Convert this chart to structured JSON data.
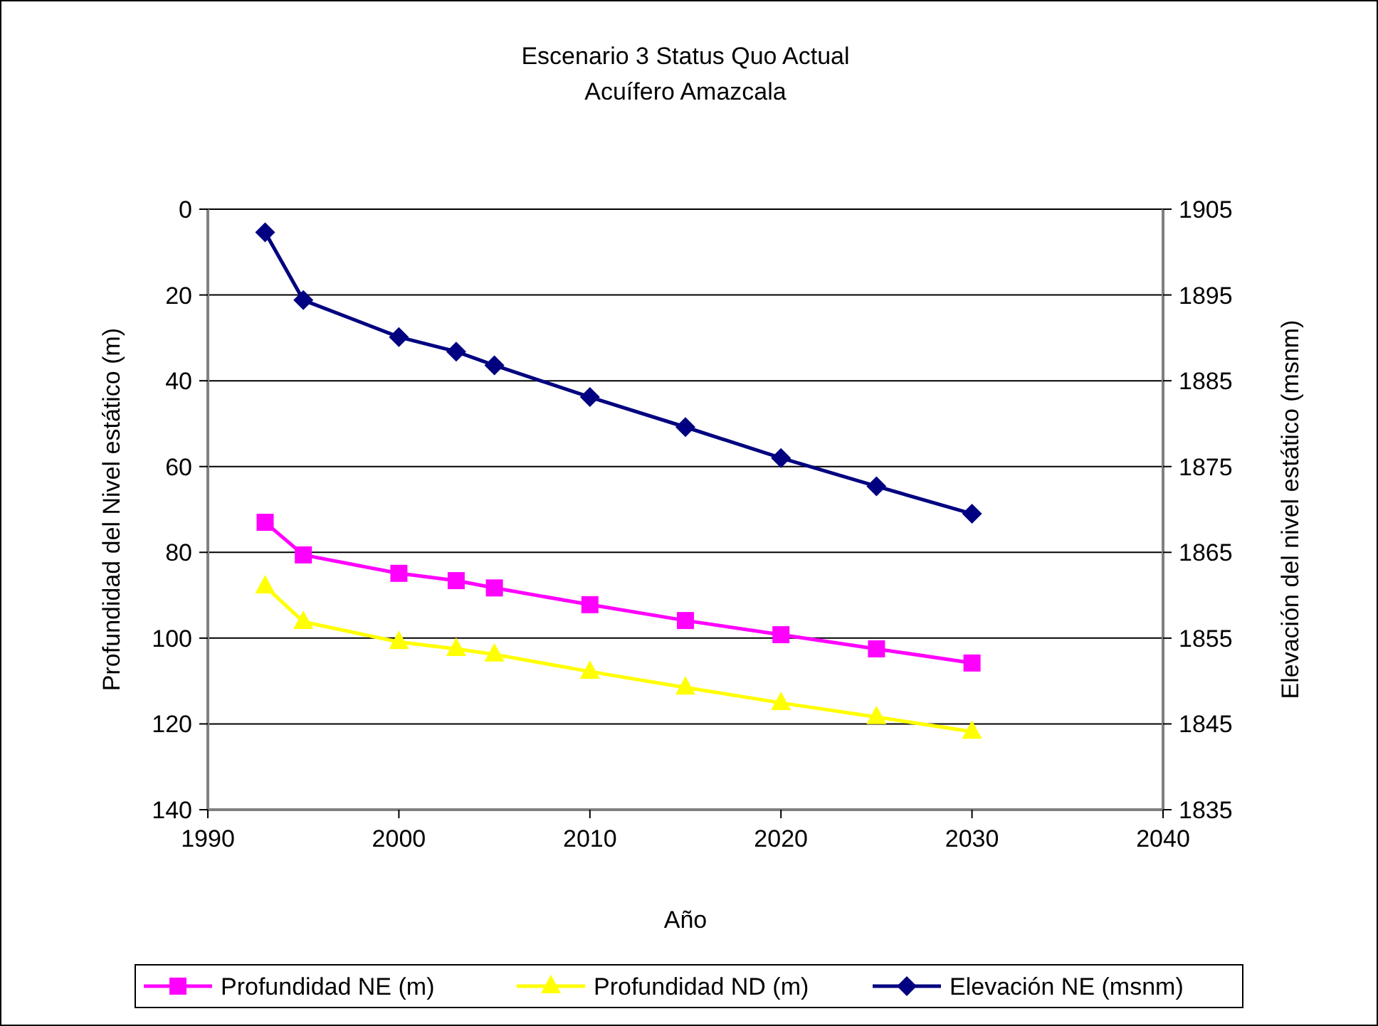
{
  "chart_data": {
    "type": "line",
    "title": "Escenario 3 Status Quo Actual",
    "subtitle": "Acuífero Amazcala",
    "xlabel": "Año",
    "ylabel": "Profundidad del Nivel estático (m)",
    "y2label": "Elevación del nivel estático (msnm)",
    "x": [
      1993,
      1995,
      2000,
      2003,
      2005,
      2010,
      2015,
      2020,
      2025,
      2030
    ],
    "series": [
      {
        "name": "Profundidad NE (m)",
        "color": "#ff00ff",
        "marker": "square",
        "values": [
          73.0,
          80.6,
          84.9,
          86.6,
          88.3,
          92.2,
          95.9,
          99.2,
          102.5,
          105.8
        ]
      },
      {
        "name": "Profundidad ND (m)",
        "color": "#ffff00",
        "marker": "triangle",
        "values": [
          87.9,
          96.2,
          100.9,
          102.5,
          103.8,
          107.8,
          111.5,
          115.1,
          118.4,
          121.8
        ]
      },
      {
        "name": "Elevación NE (msnm)",
        "color": "#000080",
        "marker": "diamond",
        "axis": "y2",
        "values": [
          1902.3,
          1894.4,
          1890.1,
          1888.4,
          1886.8,
          1883.1,
          1879.6,
          1876.0,
          1872.7,
          1869.5
        ]
      }
    ],
    "xlim": [
      1990,
      2040
    ],
    "xticks": [
      1990,
      2000,
      2010,
      2020,
      2030,
      2040
    ],
    "ylim": [
      140,
      0
    ],
    "yticks": [
      0,
      20,
      40,
      60,
      80,
      100,
      120,
      140
    ],
    "y2lim": [
      1835,
      1905
    ],
    "y2ticks": [
      1835,
      1845,
      1855,
      1865,
      1875,
      1885,
      1895,
      1905
    ],
    "grid": "y",
    "legend": "bottom"
  }
}
